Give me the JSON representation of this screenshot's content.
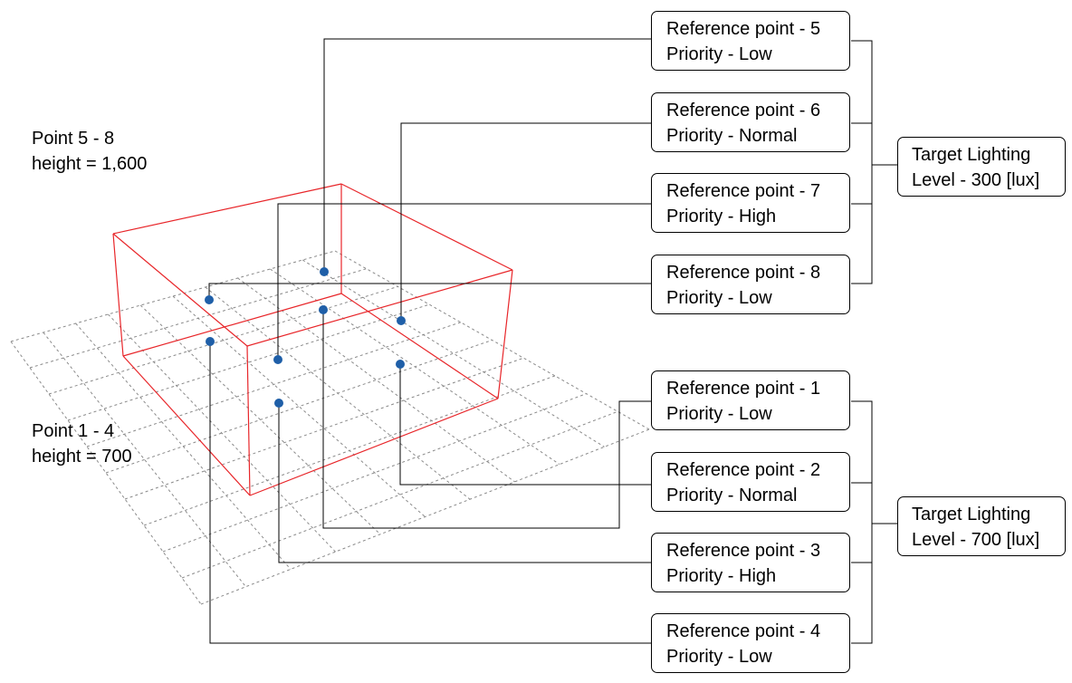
{
  "labels": {
    "upper_group": {
      "line1": "Point 5 - 8",
      "line2": "height = 1,600"
    },
    "lower_group": {
      "line1": "Point 1 - 4",
      "line2": "height = 700"
    }
  },
  "reference_points": [
    {
      "name": "Reference point - 1",
      "priority": "Priority - Low"
    },
    {
      "name": "Reference point - 2",
      "priority": "Priority - Normal"
    },
    {
      "name": "Reference point - 3",
      "priority": "Priority - High"
    },
    {
      "name": "Reference point - 4",
      "priority": "Priority - Low"
    },
    {
      "name": "Reference point - 5",
      "priority": "Priority - Low"
    },
    {
      "name": "Reference point - 6",
      "priority": "Priority - Normal"
    },
    {
      "name": "Reference point - 7",
      "priority": "Priority - High"
    },
    {
      "name": "Reference point - 8",
      "priority": "Priority - Low"
    }
  ],
  "targets": [
    {
      "line1": "Target Lighting",
      "line2": "Level - 300 [lux]"
    },
    {
      "line1": "Target Lighting",
      "line2": "Level - 700 [lux]"
    }
  ],
  "colors": {
    "box_edges": "#e8262a",
    "grid": "#8a8a8a",
    "points": "#1f5fa8",
    "connectors": "#000000"
  }
}
